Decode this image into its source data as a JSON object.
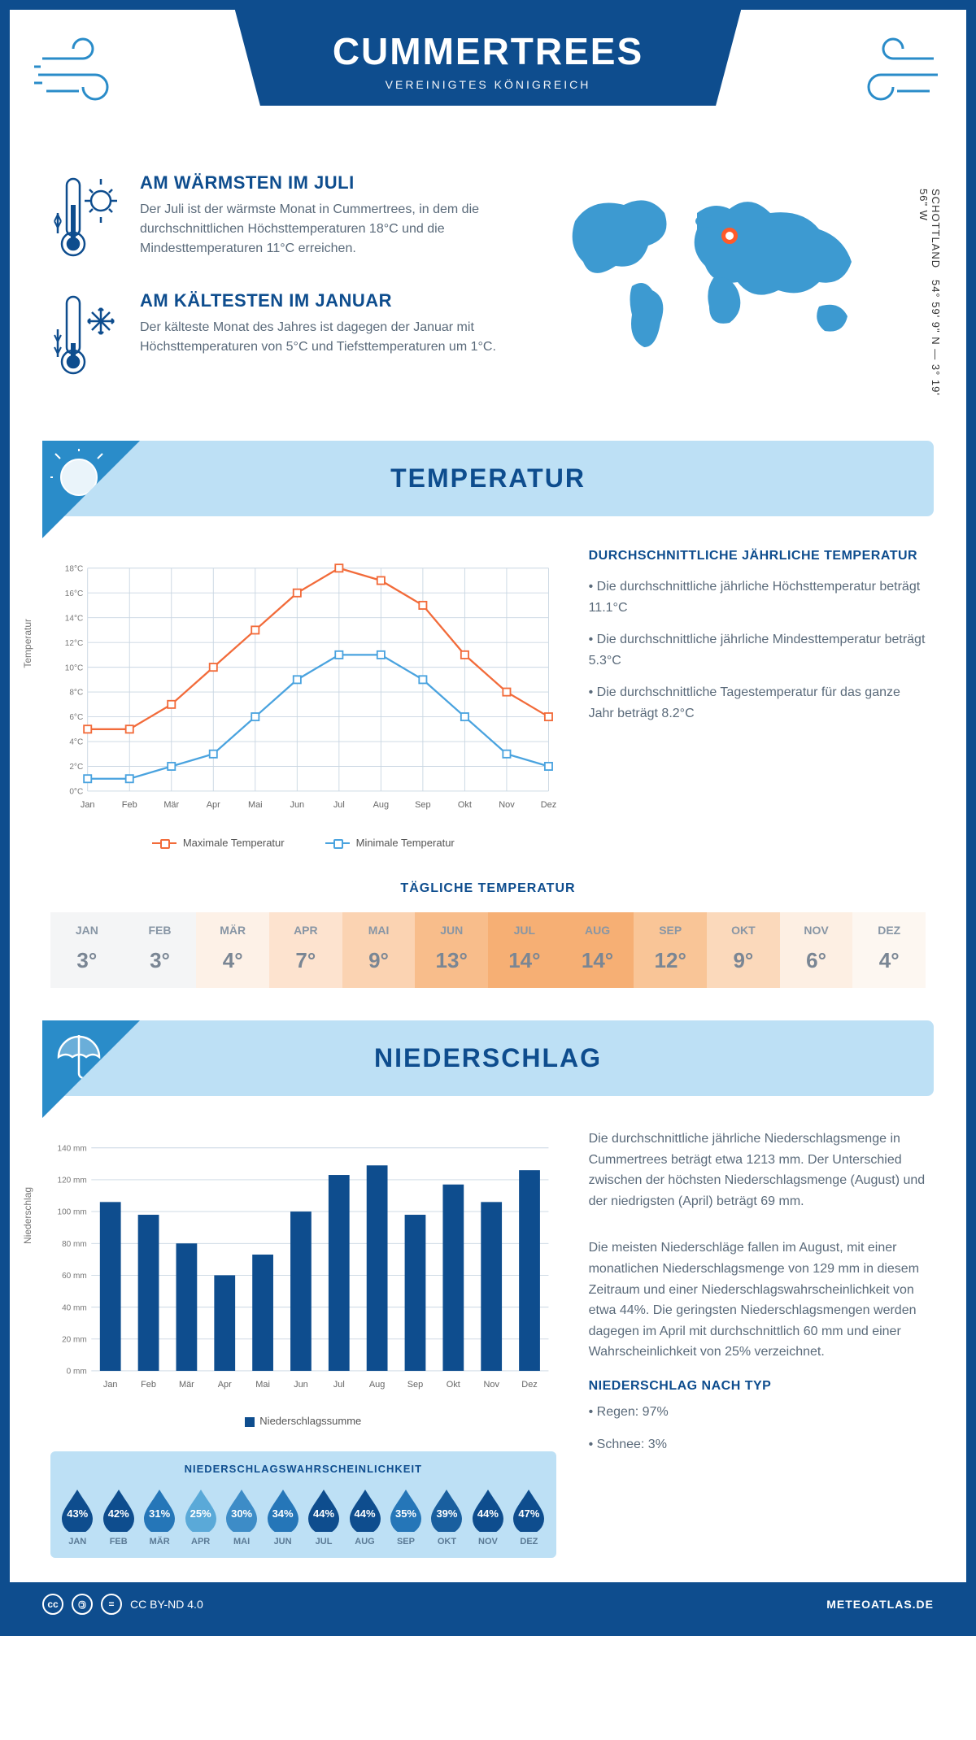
{
  "header": {
    "title": "CUMMERTREES",
    "subtitle": "VEREINIGTES KÖNIGREICH"
  },
  "coords": {
    "line1": "54° 59' 9\" N — 3° 19' 56\" W",
    "line2": "SCHOTTLAND"
  },
  "warmest": {
    "heading": "AM WÄRMSTEN IM JULI",
    "text": "Der Juli ist der wärmste Monat in Cummertrees, in dem die durchschnittlichen Höchsttemperaturen 18°C und die Mindesttemperaturen 11°C erreichen."
  },
  "coldest": {
    "heading": "AM KÄLTESTEN IM JANUAR",
    "text": "Der kälteste Monat des Jahres ist dagegen der Januar mit Höchsttemperaturen von 5°C und Tiefsttemperaturen um 1°C."
  },
  "temperature_section": {
    "banner": "TEMPERATUR",
    "side_heading": "DURCHSCHNITTLICHE JÄHRLICHE TEMPERATUR",
    "bullets": [
      "• Die durchschnittliche jährliche Höchsttemperatur beträgt 11.1°C",
      "• Die durchschnittliche jährliche Mindesttemperatur beträgt 5.3°C",
      "• Die durchschnittliche Tagestemperatur für das ganze Jahr beträgt 8.2°C"
    ],
    "chart": {
      "type": "line",
      "months": [
        "Jan",
        "Feb",
        "Mär",
        "Apr",
        "Mai",
        "Jun",
        "Jul",
        "Aug",
        "Sep",
        "Okt",
        "Nov",
        "Dez"
      ],
      "y_axis_label": "Temperatur",
      "y_ticks": [
        "0°C",
        "2°C",
        "4°C",
        "6°C",
        "8°C",
        "10°C",
        "12°C",
        "14°C",
        "16°C",
        "18°C"
      ],
      "ylim": [
        0,
        18
      ],
      "max_series": {
        "label": "Maximale Temperatur",
        "color": "#f26b3a",
        "values": [
          5,
          5,
          7,
          10,
          13,
          16,
          18,
          17,
          15,
          11,
          8,
          6
        ]
      },
      "min_series": {
        "label": "Minimale Temperatur",
        "color": "#4aa3df",
        "values": [
          1,
          1,
          2,
          3,
          6,
          9,
          11,
          11,
          9,
          6,
          3,
          2
        ]
      },
      "grid_color": "#c9d6e2",
      "line_width": 2.5,
      "marker_size": 5,
      "background": "#ffffff"
    },
    "daily_heading": "TÄGLICHE TEMPERATUR",
    "daily": {
      "months": [
        "JAN",
        "FEB",
        "MÄR",
        "APR",
        "MAI",
        "JUN",
        "JUL",
        "AUG",
        "SEP",
        "OKT",
        "NOV",
        "DEZ"
      ],
      "values": [
        "3°",
        "3°",
        "4°",
        "7°",
        "9°",
        "13°",
        "14°",
        "14°",
        "12°",
        "9°",
        "6°",
        "4°"
      ],
      "bg_colors": [
        "#f4f5f6",
        "#f4f5f6",
        "#fdf1e7",
        "#fde3cf",
        "#fbd3b2",
        "#f8bd8b",
        "#f6af74",
        "#f6af74",
        "#f9c597",
        "#fbd9bb",
        "#fdefe3",
        "#fdf7f1"
      ]
    }
  },
  "precipitation_section": {
    "banner": "NIEDERSCHLAG",
    "para1": "Die durchschnittliche jährliche Niederschlagsmenge in Cummertrees beträgt etwa 1213 mm. Der Unterschied zwischen der höchsten Niederschlagsmenge (August) und der niedrigsten (April) beträgt 69 mm.",
    "para2": "Die meisten Niederschläge fallen im August, mit einer monatlichen Niederschlagsmenge von 129 mm in diesem Zeitraum und einer Niederschlagswahrscheinlichkeit von etwa 44%. Die geringsten Niederschlagsmengen werden dagegen im April mit durchschnittlich 60 mm und einer Wahrscheinlichkeit von 25% verzeichnet.",
    "type_heading": "NIEDERSCHLAG NACH TYP",
    "type_bullets": [
      "• Regen: 97%",
      "• Schnee: 3%"
    ],
    "chart": {
      "type": "bar",
      "months": [
        "Jan",
        "Feb",
        "Mär",
        "Apr",
        "Mai",
        "Jun",
        "Jul",
        "Aug",
        "Sep",
        "Okt",
        "Nov",
        "Dez"
      ],
      "values": [
        106,
        98,
        80,
        60,
        73,
        100,
        123,
        129,
        98,
        117,
        106,
        126
      ],
      "y_axis_label": "Niederschlag",
      "y_ticks": [
        "0 mm",
        "20 mm",
        "40 mm",
        "60 mm",
        "80 mm",
        "100 mm",
        "120 mm",
        "140 mm"
      ],
      "ylim": [
        0,
        140
      ],
      "bar_color": "#0e4d8e",
      "grid_color": "#c9d6e2",
      "legend_label": "Niederschlagssumme",
      "background": "#ffffff",
      "bar_width": 0.55
    },
    "probability": {
      "heading": "NIEDERSCHLAGSWAHRSCHEINLICHKEIT",
      "months": [
        "JAN",
        "FEB",
        "MÄR",
        "APR",
        "MAI",
        "JUN",
        "JUL",
        "AUG",
        "SEP",
        "OKT",
        "NOV",
        "DEZ"
      ],
      "values": [
        "43%",
        "42%",
        "31%",
        "25%",
        "30%",
        "34%",
        "44%",
        "44%",
        "35%",
        "39%",
        "44%",
        "47%"
      ],
      "drop_colors": [
        "#0e4d8e",
        "#0e4d8e",
        "#2576b8",
        "#5aa9d8",
        "#3d8cc7",
        "#2576b8",
        "#0e4d8e",
        "#0e4d8e",
        "#2576b8",
        "#195f9f",
        "#0e4d8e",
        "#0e4d8e"
      ]
    }
  },
  "footer": {
    "license": "CC BY-ND 4.0",
    "site": "METEOATLAS.DE"
  },
  "colors": {
    "primary": "#0e4d8e",
    "light_blue": "#bde0f5",
    "accent_orange": "#f26b3a",
    "sky_blue": "#4aa3df",
    "text_grey": "#5a6a7a"
  }
}
